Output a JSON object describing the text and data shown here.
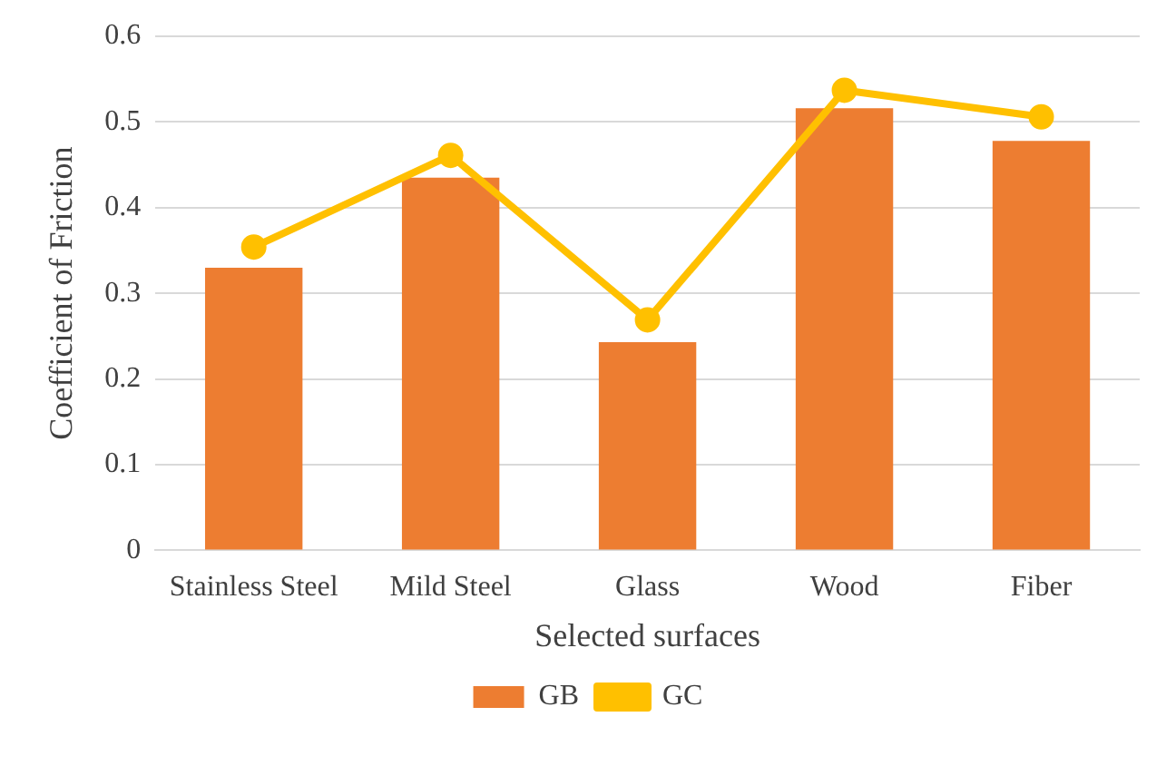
{
  "chart_data": {
    "type": "bar",
    "xlabel": "Selected surfaces",
    "ylabel": "Coefficient of Friction",
    "categories": [
      "Stainless Steel",
      "Mild Steel",
      "Glass",
      "Wood",
      "Fiber"
    ],
    "series": [
      {
        "name": "GB",
        "color": "#ed7d31",
        "values": [
          0.33,
          0.435,
          0.243,
          0.516,
          0.478
        ]
      },
      {
        "name": "GC",
        "type": "line",
        "color": "#ffc000",
        "values": [
          0.354,
          0.461,
          0.269,
          0.537,
          0.506
        ]
      }
    ],
    "ylim": [
      0,
      0.6
    ],
    "yticks": [
      0,
      0.1,
      0.2,
      0.3,
      0.4,
      0.5,
      0.6
    ],
    "grid": "y",
    "legend": "bottom",
    "marker": "circle",
    "line_style": "solid"
  }
}
